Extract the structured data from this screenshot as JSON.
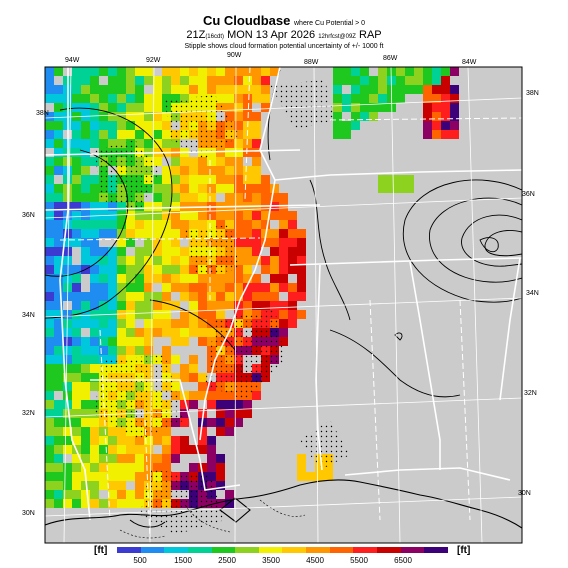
{
  "header": {
    "title": "Cu Cloudbase",
    "title_suffix": "where Cu Potential > 0",
    "valid_prefix": "21Z",
    "valid_local": "(16cdt)",
    "valid_date": "MON 13 Apr 2026",
    "valid_suffix": "12hrfcst@09Z",
    "model": "RAP",
    "stipple_note": "Stipple shows cloud formation potential uncertainty of +/- 1000 ft"
  },
  "map": {
    "lon_labels": [
      "94W",
      "92W",
      "90W",
      "88W",
      "86W",
      "84W"
    ],
    "lat_labels_left": [
      "38N",
      "36N",
      "34N",
      "32N",
      "30N"
    ],
    "lat_labels_right": [
      "38N",
      "36N",
      "34N",
      "32N",
      "30N"
    ],
    "colors": {
      "no_data": "#cbcbcb",
      "background": "#ffffff",
      "state_lines": "#ffffff",
      "contours": "#000000"
    }
  },
  "colorbar": {
    "unit_left": "[ft]",
    "unit_right": "[ft]",
    "ticks": [
      "500",
      "1500",
      "2500",
      "3500",
      "4500",
      "5500",
      "6500"
    ],
    "colors": [
      "#3b3bd2",
      "#1e8cf0",
      "#00c8dc",
      "#00d296",
      "#1ec81e",
      "#8cd21e",
      "#f0f000",
      "#ffc800",
      "#ff9600",
      "#ff6400",
      "#ff1e1e",
      "#c80000",
      "#8c0064",
      "#3c0078"
    ]
  }
}
